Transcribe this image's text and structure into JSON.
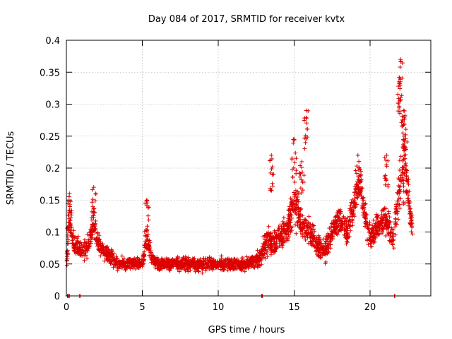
{
  "chart_data": {
    "type": "scatter",
    "title": "Day 084 of 2017, SRMTID for receiver kvtx",
    "xlabel": "GPS time / hours",
    "ylabel": "SRMTID / TECUs",
    "xlim": [
      0,
      24
    ],
    "ylim": [
      0,
      0.4
    ],
    "x_ticks": [
      0,
      5,
      10,
      15,
      20
    ],
    "x_tick_labels": [
      "0",
      "5",
      "10",
      "15",
      "20"
    ],
    "y_ticks": [
      0,
      0.05,
      0.1,
      0.15,
      0.2,
      0.25,
      0.3,
      0.35,
      0.4
    ],
    "y_tick_labels": [
      "0",
      "0.05",
      "0.1",
      "0.15",
      "0.2",
      "0.25",
      "0.3",
      "0.35",
      "0.4"
    ],
    "grid": true,
    "marker": "+",
    "series_color": "#dd0000",
    "series": [
      {
        "name": "SRMTID",
        "profile_x": [
          0,
          0.2,
          0.5,
          1,
          1.5,
          1.8,
          2,
          2.5,
          3,
          3.5,
          4,
          4.5,
          5,
          5.3,
          5.6,
          6,
          7,
          8,
          9,
          10,
          11,
          12,
          12.8,
          13.2,
          13.6,
          14,
          14.5,
          15,
          15.5,
          16,
          16.5,
          17,
          17.5,
          18,
          18.5,
          19,
          19.3,
          19.7,
          20,
          20.5,
          21,
          21.5,
          22,
          22.3,
          22.6,
          22.8
        ],
        "profile_y": [
          0.05,
          0.12,
          0.08,
          0.07,
          0.08,
          0.12,
          0.09,
          0.07,
          0.06,
          0.05,
          0.05,
          0.05,
          0.05,
          0.09,
          0.06,
          0.05,
          0.05,
          0.05,
          0.05,
          0.05,
          0.05,
          0.05,
          0.06,
          0.09,
          0.08,
          0.09,
          0.1,
          0.15,
          0.11,
          0.1,
          0.08,
          0.07,
          0.1,
          0.12,
          0.1,
          0.15,
          0.18,
          0.12,
          0.09,
          0.11,
          0.12,
          0.09,
          0.18,
          0.2,
          0.14,
          0.1
        ],
        "profile_spread": [
          0.02,
          0.04,
          0.03,
          0.02,
          0.03,
          0.03,
          0.025,
          0.02,
          0.02,
          0.015,
          0.015,
          0.015,
          0.015,
          0.03,
          0.015,
          0.015,
          0.015,
          0.015,
          0.015,
          0.015,
          0.015,
          0.015,
          0.02,
          0.04,
          0.025,
          0.03,
          0.03,
          0.06,
          0.04,
          0.035,
          0.025,
          0.025,
          0.03,
          0.035,
          0.035,
          0.035,
          0.04,
          0.04,
          0.03,
          0.035,
          0.035,
          0.03,
          0.06,
          0.08,
          0.04,
          0.03
        ],
        "spikes": [
          {
            "x": 0.2,
            "y": 0.16
          },
          {
            "x": 1.8,
            "y": 0.17
          },
          {
            "x": 5.3,
            "y": 0.15
          },
          {
            "x": 13.5,
            "y": 0.22
          },
          {
            "x": 15.0,
            "y": 0.245
          },
          {
            "x": 15.5,
            "y": 0.21
          },
          {
            "x": 15.8,
            "y": 0.29
          },
          {
            "x": 19.2,
            "y": 0.22
          },
          {
            "x": 21.1,
            "y": 0.22
          },
          {
            "x": 22.0,
            "y": 0.37
          },
          {
            "x": 21.9,
            "y": 0.335
          },
          {
            "x": 22.2,
            "y": 0.29
          },
          {
            "x": 22.3,
            "y": 0.28
          }
        ],
        "zero_points_x": [
          0.1,
          0.2,
          0.9,
          12.9,
          21.6
        ]
      }
    ]
  }
}
